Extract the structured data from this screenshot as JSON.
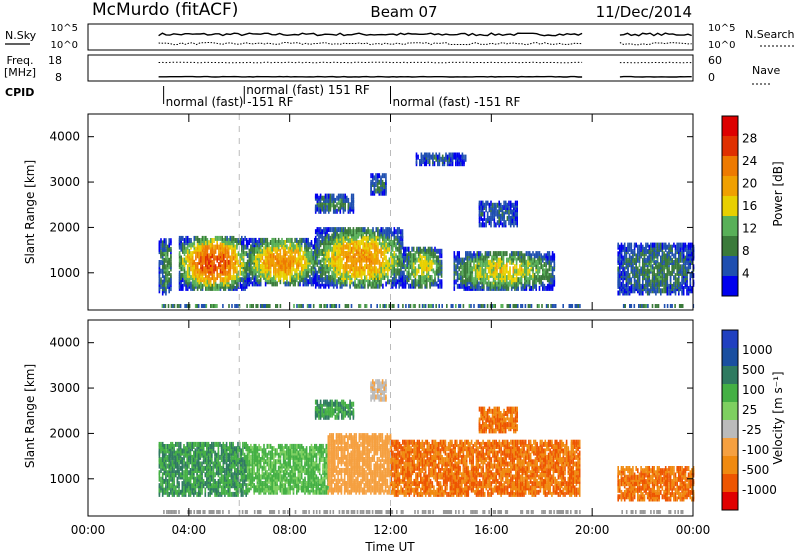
{
  "header": {
    "station": "McMurdo (fitACF)",
    "beam": "Beam 07",
    "date": "11/Dec/2014"
  },
  "top_panels": {
    "nsky_label": "N.Sky",
    "nsky_ticks": [
      "10^5",
      "10^0"
    ],
    "nsearch_label": "N.Search",
    "nsearch_ticks": [
      "10^5",
      "10^0"
    ],
    "freq_label_1": "Freq.",
    "freq_label_2": "[MHz]",
    "freq_ticks": [
      "18",
      "8"
    ],
    "nave_label": "Nave",
    "nave_ticks": [
      "60",
      "0"
    ],
    "cpid_label": "CPID",
    "cpid_segments": [
      {
        "label": "normal (fast) -151 RF",
        "row": 0,
        "start_hour": 3.0
      },
      {
        "label": "normal (fast) 151 RF",
        "row": 1,
        "start_hour": 6.2
      },
      {
        "label": "normal (fast) -151 RF",
        "row": 0,
        "start_hour": 12.0
      }
    ]
  },
  "colors": {
    "power_bar": [
      "#0000ee",
      "#1f4fb0",
      "#3a7a3a",
      "#58b058",
      "#e8d000",
      "#f0a000",
      "#ee7a00",
      "#e03000",
      "#dd0000"
    ],
    "velocity_bar": [
      "#e00000",
      "#ee5500",
      "#f08a10",
      "#f5a040",
      "#bbbbbb",
      "#7ed060",
      "#44b044",
      "#2f7a60",
      "#1a4fa0",
      "#2040c0"
    ],
    "ground_scatter": "#999999"
  },
  "chart_data": [
    {
      "type": "heatmap",
      "name": "power",
      "ylabel": "Slant Range [km]",
      "ylim": [
        180,
        4500
      ],
      "xlim_hours": [
        0,
        24
      ],
      "yticks": [
        1000,
        2000,
        3000,
        4000
      ],
      "colorbar": {
        "label": "Power [dB]",
        "ticks": [
          "28",
          "24",
          "20",
          "16",
          "12",
          "8",
          "4"
        ],
        "range": [
          0,
          32
        ]
      },
      "blobs": [
        {
          "t0": 3.6,
          "t1": 6.3,
          "r0": 600,
          "r1": 1750,
          "peak": 26
        },
        {
          "t0": 6.3,
          "t1": 9.0,
          "r0": 700,
          "r1": 1700,
          "peak": 22
        },
        {
          "t0": 9.0,
          "t1": 12.5,
          "r0": 650,
          "r1": 1900,
          "peak": 21
        },
        {
          "t0": 12.5,
          "t1": 14.0,
          "r0": 650,
          "r1": 1500,
          "peak": 16
        },
        {
          "t0": 14.5,
          "t1": 18.5,
          "r0": 600,
          "r1": 1400,
          "peak": 16
        },
        {
          "t0": 2.8,
          "t1": 3.3,
          "r0": 500,
          "r1": 1700,
          "peak": 10
        },
        {
          "t0": 21.0,
          "t1": 24.0,
          "r0": 500,
          "r1": 1600,
          "peak": 9
        },
        {
          "t0": 9.0,
          "t1": 10.5,
          "r0": 2300,
          "r1": 2650,
          "peak": 9
        },
        {
          "t0": 11.2,
          "t1": 11.8,
          "r0": 2700,
          "r1": 3100,
          "peak": 9
        },
        {
          "t0": 15.5,
          "t1": 17.0,
          "r0": 2000,
          "r1": 2500,
          "peak": 7
        },
        {
          "t0": 13.0,
          "t1": 15.0,
          "r0": 3350,
          "r1": 3550,
          "peak": 6
        }
      ]
    },
    {
      "type": "heatmap",
      "name": "velocity",
      "ylabel": "Slant Range [km]",
      "ylim": [
        180,
        4500
      ],
      "xlim_hours": [
        0,
        24
      ],
      "yticks": [
        1000,
        2000,
        3000,
        4000
      ],
      "colorbar": {
        "label": "Velocity [m s⁻¹]",
        "ticks": [
          "1000",
          "500",
          "100",
          "25",
          "-25",
          "-100",
          "-500",
          "-1000"
        ],
        "range": [
          -1000,
          1000
        ]
      },
      "blobs": [
        {
          "t0": 2.8,
          "t1": 6.3,
          "r0": 600,
          "r1": 1750,
          "vel": 300
        },
        {
          "t0": 6.3,
          "t1": 9.5,
          "r0": 650,
          "r1": 1700,
          "vel": 120
        },
        {
          "t0": 9.5,
          "t1": 12.0,
          "r0": 650,
          "r1": 1900,
          "vel": -60
        },
        {
          "t0": 12.0,
          "t1": 19.5,
          "r0": 600,
          "r1": 1800,
          "vel": -200
        },
        {
          "t0": 21.0,
          "t1": 24.0,
          "r0": 500,
          "r1": 1200,
          "vel": -200
        },
        {
          "t0": 9.0,
          "t1": 10.5,
          "r0": 2300,
          "r1": 2650,
          "vel": 300
        },
        {
          "t0": 11.2,
          "t1": 11.8,
          "r0": 2700,
          "r1": 3100,
          "vel": -10
        },
        {
          "t0": 15.5,
          "t1": 17.0,
          "r0": 2000,
          "r1": 2500,
          "vel": -200
        }
      ]
    }
  ],
  "x_axis": {
    "label": "Time UT",
    "ticks": [
      "00:00",
      "04:00",
      "08:00",
      "12:00",
      "16:00",
      "20:00",
      "00:00"
    ],
    "tick_hours": [
      0,
      4,
      8,
      12,
      16,
      20,
      24
    ]
  },
  "data_gap_hours": [
    [
      19.6,
      21.0
    ]
  ],
  "dashed_time_markers_hours": [
    6.0,
    12.0
  ]
}
